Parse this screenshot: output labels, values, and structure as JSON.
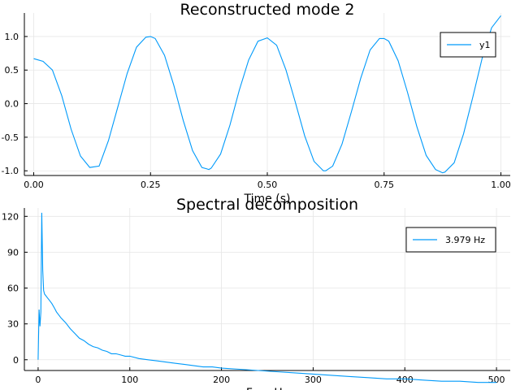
{
  "chart_data": [
    {
      "type": "line",
      "title": "Reconstructed mode 2",
      "xlabel": "Time (s)",
      "ylabel": "",
      "xlim": [
        -0.02,
        1.02
      ],
      "ylim": [
        -1.07,
        1.35
      ],
      "xticks": [
        0.0,
        0.25,
        0.5,
        0.75,
        1.0
      ],
      "xtick_labels": [
        "0.00",
        "0.25",
        "0.50",
        "0.75",
        "1.00"
      ],
      "yticks": [
        -1.0,
        -0.5,
        0.0,
        0.5,
        1.0
      ],
      "ytick_labels": [
        "-1.0",
        "-0.5",
        "0.0",
        "0.5",
        "1.0"
      ],
      "grid": true,
      "legend": "top-right",
      "series": [
        {
          "name": "y1",
          "color": "#009AFA",
          "x": [
            0.0,
            0.02,
            0.04,
            0.06,
            0.08,
            0.1,
            0.12,
            0.14,
            0.16,
            0.18,
            0.2,
            0.22,
            0.24,
            0.25,
            0.26,
            0.28,
            0.3,
            0.32,
            0.34,
            0.36,
            0.375,
            0.38,
            0.4,
            0.42,
            0.44,
            0.46,
            0.48,
            0.5,
            0.52,
            0.54,
            0.56,
            0.58,
            0.6,
            0.62,
            0.625,
            0.64,
            0.66,
            0.68,
            0.7,
            0.72,
            0.74,
            0.75,
            0.76,
            0.78,
            0.8,
            0.82,
            0.84,
            0.86,
            0.875,
            0.88,
            0.9,
            0.92,
            0.94,
            0.96,
            0.98,
            1.0
          ],
          "y": [
            0.67,
            0.63,
            0.5,
            0.12,
            -0.38,
            -0.78,
            -0.95,
            -0.93,
            -0.55,
            -0.05,
            0.45,
            0.84,
            0.99,
            1.0,
            0.97,
            0.72,
            0.27,
            -0.25,
            -0.7,
            -0.95,
            -0.98,
            -0.96,
            -0.75,
            -0.32,
            0.2,
            0.65,
            0.93,
            0.98,
            0.87,
            0.5,
            0.02,
            -0.48,
            -0.86,
            -1.0,
            -1.0,
            -0.93,
            -0.6,
            -0.12,
            0.38,
            0.8,
            0.97,
            0.97,
            0.93,
            0.64,
            0.17,
            -0.34,
            -0.77,
            -0.98,
            -1.03,
            -1.02,
            -0.88,
            -0.45,
            0.1,
            0.68,
            1.13,
            1.31
          ]
        }
      ]
    },
    {
      "type": "line",
      "title": "Spectral decomposition",
      "xlabel": "Freq Hz",
      "ylabel": "",
      "xlim": [
        -15,
        515
      ],
      "ylim": [
        -9,
        127
      ],
      "xticks": [
        0,
        100,
        200,
        300,
        400,
        500
      ],
      "xtick_labels": [
        "0",
        "100",
        "200",
        "300",
        "400",
        "500"
      ],
      "yticks": [
        0,
        30,
        60,
        90,
        120
      ],
      "ytick_labels": [
        "0",
        "30",
        "60",
        "90",
        "120"
      ],
      "grid": true,
      "legend": "top-right",
      "series": [
        {
          "name": "3.979 Hz",
          "color": "#009AFA",
          "x": [
            0,
            1,
            2,
            3,
            4,
            5,
            6,
            7,
            8,
            10,
            12,
            15,
            18,
            20,
            25,
            30,
            35,
            40,
            45,
            50,
            55,
            60,
            65,
            70,
            75,
            80,
            85,
            90,
            95,
            100,
            110,
            120,
            130,
            140,
            150,
            160,
            170,
            180,
            190,
            200,
            220,
            240,
            260,
            280,
            300,
            320,
            340,
            360,
            380,
            400,
            420,
            440,
            460,
            480,
            500
          ],
          "y": [
            0,
            42,
            28,
            40,
            123,
            75,
            58,
            55,
            54,
            52,
            50,
            47,
            43,
            40,
            35,
            31,
            26,
            22,
            18,
            16,
            13,
            11,
            10,
            8,
            7,
            5,
            5,
            4,
            3,
            3,
            1,
            0,
            -1,
            -2,
            -3,
            -4,
            -5,
            -6,
            -6,
            -7,
            -8,
            -9,
            -10,
            -11,
            -12,
            -13,
            -14,
            -15,
            -16,
            -16,
            -17,
            -18,
            -18,
            -19,
            -19
          ]
        }
      ]
    }
  ]
}
